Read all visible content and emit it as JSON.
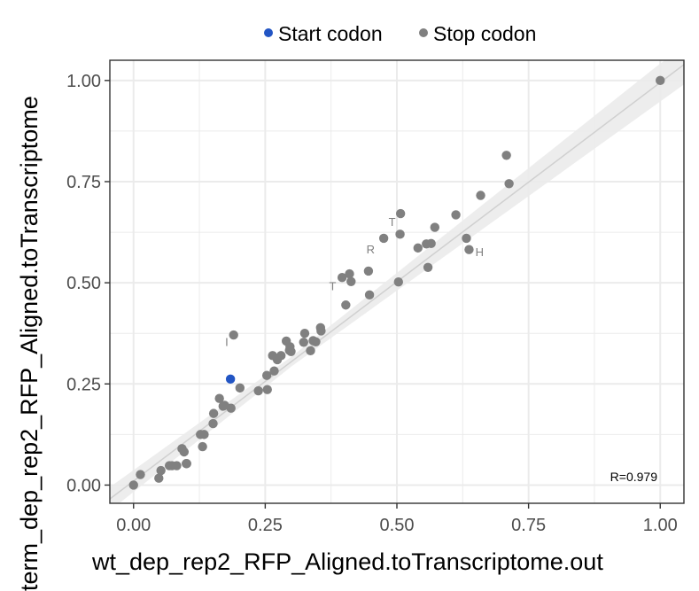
{
  "chart_data": {
    "type": "scatter",
    "xlabel": "wt_dep_rep2_RFP_Aligned.toTranscriptome.out",
    "ylabel": "term_dep_rep2_RFP_Aligned.toTranscriptome",
    "xlim": [
      -0.045,
      1.045
    ],
    "ylim": [
      -0.045,
      1.05
    ],
    "x_ticks": [
      "0.00",
      "0.25",
      "0.50",
      "0.75",
      "1.00"
    ],
    "y_ticks": [
      "0.00",
      "0.25",
      "0.50",
      "0.75",
      "1.00"
    ],
    "grid": true,
    "legend_position": "top",
    "annotation": "R=0.979",
    "trend_line": {
      "slope": 0.985,
      "intercept": 0.01
    },
    "colors": {
      "start": "#2255c4",
      "stop": "#808080",
      "grid": "#ebebeb",
      "trend": "#d0d0d0",
      "band": "#ebebeb"
    },
    "series": [
      {
        "name": "Start codon",
        "points": [
          [
            0.184,
            0.262
          ]
        ]
      },
      {
        "name": "Stop codon",
        "points": [
          [
            0.0,
            0.0
          ],
          [
            0.013,
            0.026
          ],
          [
            0.048,
            0.017
          ],
          [
            0.052,
            0.036
          ],
          [
            0.068,
            0.048
          ],
          [
            0.073,
            0.048
          ],
          [
            0.082,
            0.048
          ],
          [
            0.092,
            0.09
          ],
          [
            0.096,
            0.082
          ],
          [
            0.1,
            0.053
          ],
          [
            0.101,
            0.053
          ],
          [
            0.127,
            0.125
          ],
          [
            0.131,
            0.095
          ],
          [
            0.134,
            0.125
          ],
          [
            0.151,
            0.152
          ],
          [
            0.152,
            0.177
          ],
          [
            0.163,
            0.214
          ],
          [
            0.17,
            0.195
          ],
          [
            0.173,
            0.197
          ],
          [
            0.185,
            0.19
          ],
          [
            0.19,
            0.371
          ],
          [
            0.202,
            0.24
          ],
          [
            0.237,
            0.233
          ],
          [
            0.254,
            0.236
          ],
          [
            0.253,
            0.271
          ],
          [
            0.264,
            0.32
          ],
          [
            0.267,
            0.282
          ],
          [
            0.273,
            0.31
          ],
          [
            0.28,
            0.32
          ],
          [
            0.29,
            0.356
          ],
          [
            0.296,
            0.333
          ],
          [
            0.297,
            0.342
          ],
          [
            0.299,
            0.33
          ],
          [
            0.323,
            0.353
          ],
          [
            0.325,
            0.375
          ],
          [
            0.336,
            0.332
          ],
          [
            0.341,
            0.357
          ],
          [
            0.346,
            0.354
          ],
          [
            0.355,
            0.389
          ],
          [
            0.356,
            0.381
          ],
          [
            0.396,
            0.513
          ],
          [
            0.403,
            0.445
          ],
          [
            0.41,
            0.522
          ],
          [
            0.413,
            0.503
          ],
          [
            0.446,
            0.529
          ],
          [
            0.448,
            0.47
          ],
          [
            0.475,
            0.61
          ],
          [
            0.503,
            0.502
          ],
          [
            0.506,
            0.62
          ],
          [
            0.507,
            0.671
          ],
          [
            0.54,
            0.586
          ],
          [
            0.556,
            0.596
          ],
          [
            0.559,
            0.538
          ],
          [
            0.565,
            0.597
          ],
          [
            0.572,
            0.637
          ],
          [
            0.612,
            0.668
          ],
          [
            0.632,
            0.61
          ],
          [
            0.637,
            0.582
          ],
          [
            0.659,
            0.716
          ],
          [
            0.708,
            0.815
          ],
          [
            0.713,
            0.745
          ],
          [
            1.0,
            1.0
          ]
        ]
      }
    ],
    "point_labels": [
      {
        "text": "I",
        "x": 0.177,
        "y": 0.355
      },
      {
        "text": "T",
        "x": 0.378,
        "y": 0.493
      },
      {
        "text": "R",
        "x": 0.45,
        "y": 0.583
      },
      {
        "text": "T",
        "x": 0.491,
        "y": 0.651
      },
      {
        "text": "H",
        "x": 0.657,
        "y": 0.577
      }
    ]
  }
}
